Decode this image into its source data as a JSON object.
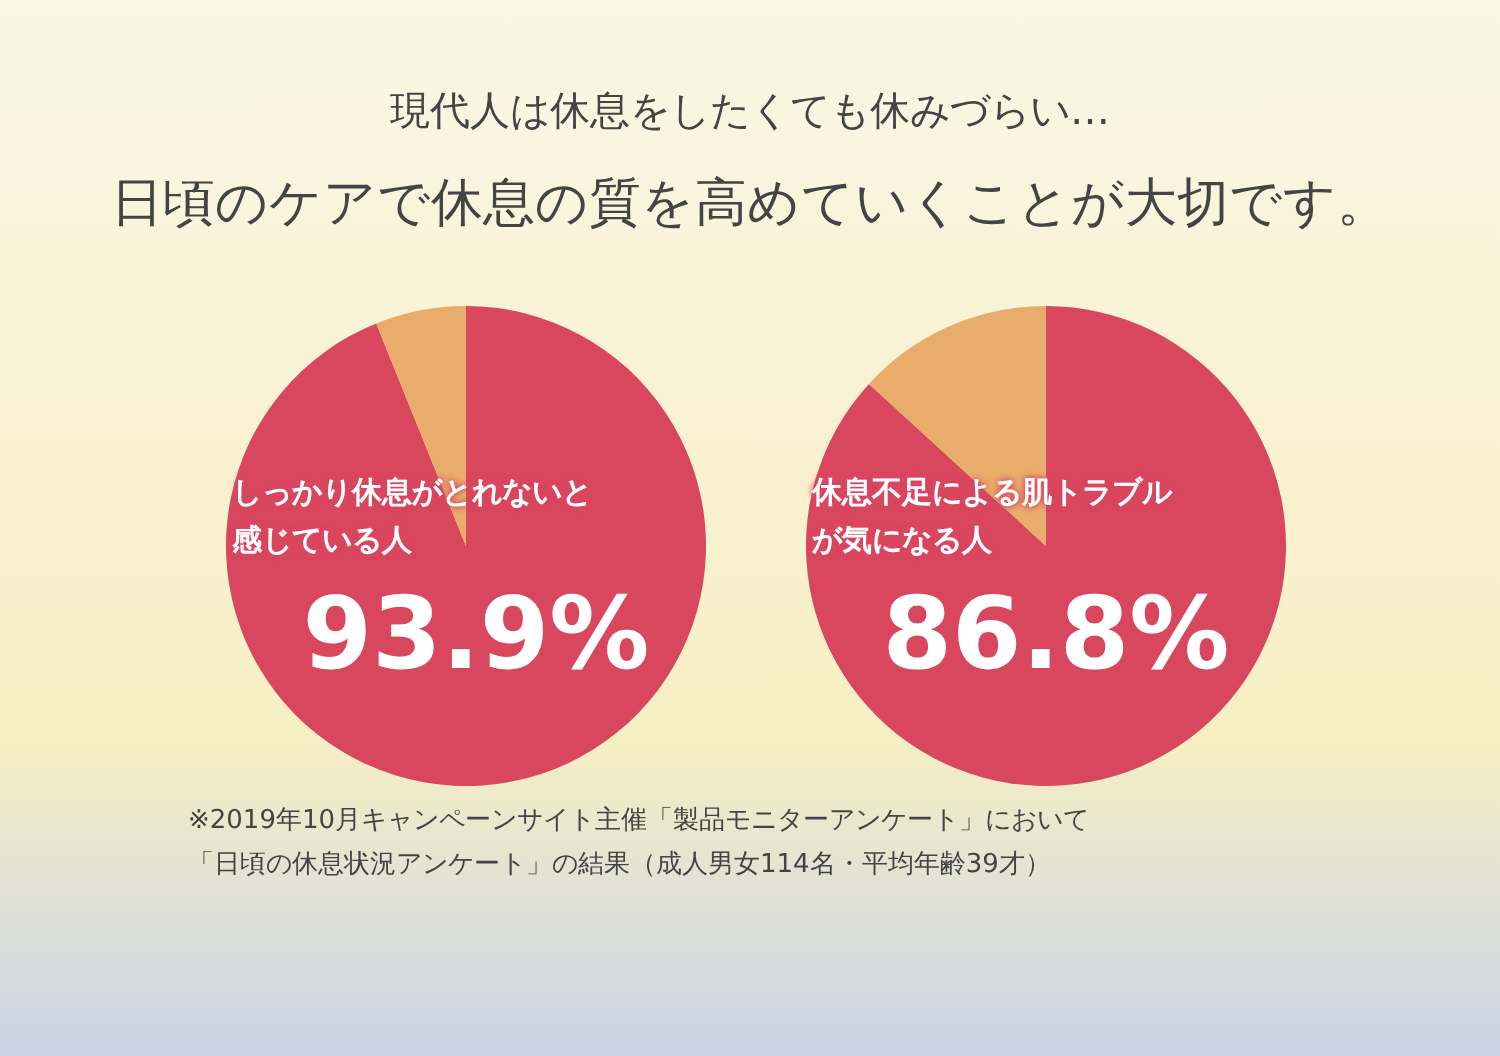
{
  "chart_data": [
    {
      "type": "pie",
      "title": "現代人は休息をしたくても休みづらい…",
      "subtitle": "日頃のケアで休息の質を高めていくことが大切です。",
      "categories": [
        "しっかり休息がとれないと感じている人",
        null
      ],
      "values": [
        93.9,
        6.1
      ],
      "colors": [
        "#d9475f",
        "#e8ad6a"
      ],
      "value_labels": [
        "93.9%",
        null
      ]
    },
    {
      "type": "pie",
      "categories": [
        "休息不足による肌トラブルが気になる人",
        null
      ],
      "values": [
        86.8,
        13.2
      ],
      "colors": [
        "#d9475f",
        "#e8ad6a"
      ],
      "value_labels": [
        "86.8%",
        null
      ],
      "annotations": [
        "※2019年10月キャンペーンサイト主催「製品モニターアンケート」において",
        "「日頃の休息状況アンケート」の結果（成人男女114名・平均年齢39才）"
      ]
    }
  ]
}
